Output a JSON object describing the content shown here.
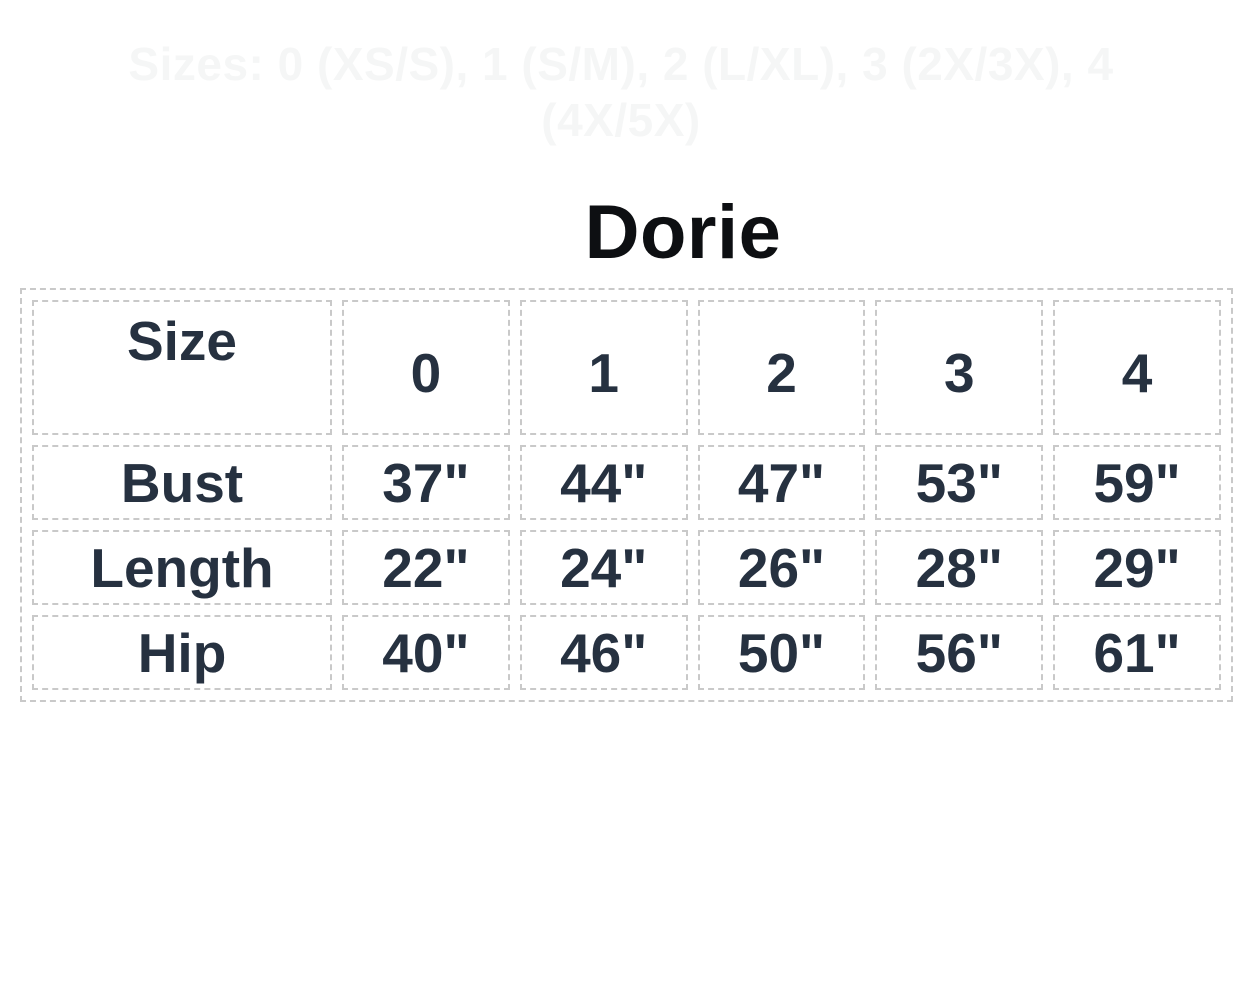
{
  "page": {
    "sizes_note_line1": "Sizes: 0 (XS/S), 1 (S/M), 2 (L/XL), 3 (2X/3X), 4",
    "sizes_note_line2": "(4X/5X)",
    "title": "Dorie"
  },
  "size_chart": {
    "header": [
      "Size",
      "0",
      "1",
      "2",
      "3",
      "4"
    ],
    "rows": [
      {
        "label": "Bust",
        "values": [
          "37\"",
          "44\"",
          "47\"",
          "53\"",
          "59\""
        ]
      },
      {
        "label": "Length",
        "values": [
          "22\"",
          "24\"",
          "26\"",
          "28\"",
          "29\""
        ]
      },
      {
        "label": "Hip",
        "values": [
          "40\"",
          "46\"",
          "50\"",
          "56\"",
          "61\""
        ]
      }
    ]
  },
  "colors": {
    "table_text": "#263140",
    "dashed_border": "#c9c9c9",
    "faint_note_text": "#f5f6f6",
    "title_text": "#0d0f12",
    "background": "#ffffff"
  }
}
